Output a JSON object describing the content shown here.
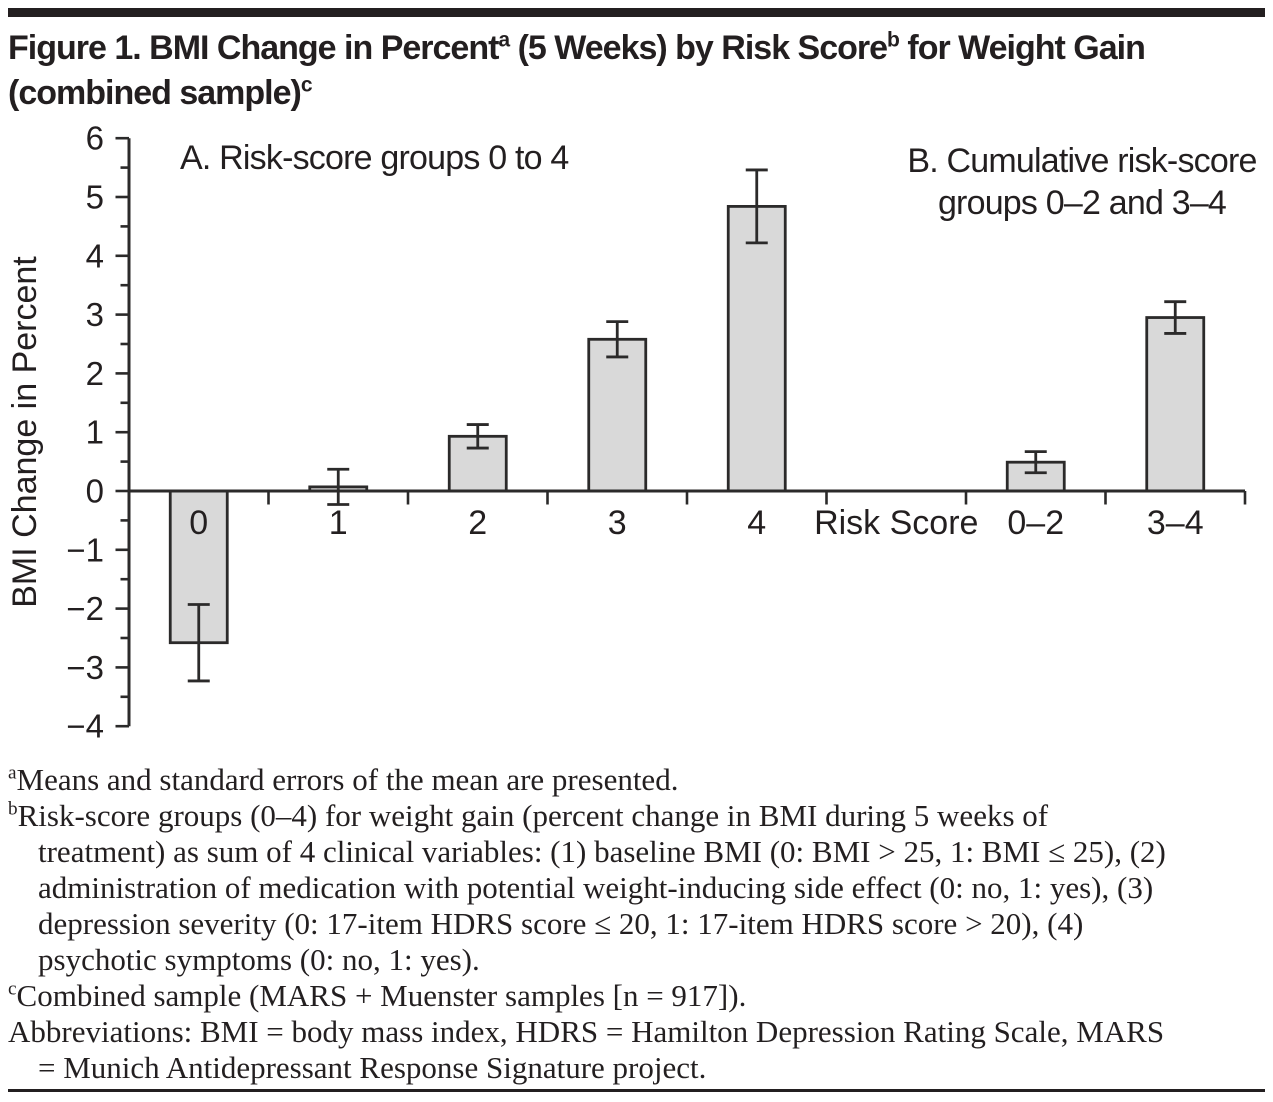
{
  "title": {
    "seg1": "Figure 1. BMI Change in Percent",
    "sup1": "a",
    "seg2": " (5 Weeks) by Risk Score",
    "sup2": "b",
    "seg3": " for Weight Gain",
    "seg4": "(combined sample)",
    "sup3": "c"
  },
  "chart_data": {
    "type": "bar",
    "title": "BMI Change in Percent (5 Weeks) by Risk Score for Weight Gain (combined sample)",
    "panel_a_label": "A. Risk-score groups 0 to 4",
    "panel_b_label_line1": "B. Cumulative risk-score",
    "panel_b_label_line2": "groups 0–2 and 3–4",
    "ylabel": "BMI Change in Percent",
    "xlabel": "Risk Score",
    "ylim": [
      -4,
      6
    ],
    "y_major_step": 1,
    "y_minor_step": 0.5,
    "y_tick_labels": [
      "6",
      "5",
      "4",
      "3",
      "2",
      "1",
      "0",
      "−1",
      "−2",
      "−3",
      "−4"
    ],
    "grid": "off",
    "legend": "none",
    "error_bars": "mean ± standard error",
    "categories": [
      "0",
      "1",
      "2",
      "3",
      "4",
      "Risk Score",
      "0–2",
      "3–4"
    ],
    "slots": [
      {
        "label": "0",
        "mean": -2.58,
        "se": 0.65
      },
      {
        "label": "1",
        "mean": 0.07,
        "se": 0.3
      },
      {
        "label": "2",
        "mean": 0.93,
        "se": 0.2
      },
      {
        "label": "3",
        "mean": 2.58,
        "se": 0.3
      },
      {
        "label": "4",
        "mean": 4.84,
        "se": 0.62
      },
      {
        "label": "Risk Score",
        "mean": null,
        "se": null
      },
      {
        "label": "0–2",
        "mean": 0.49,
        "se": 0.18
      },
      {
        "label": "3–4",
        "mean": 2.95,
        "se": 0.27
      }
    ],
    "colors": {
      "bar_fill": "#d9d9d9",
      "bar_stroke": "#2b2a2a",
      "axis_color": "#2b2a2a",
      "text_color": "#231f20",
      "rule_color": "#231f20"
    }
  },
  "footnotes": {
    "a_sup": "a",
    "a_text": "Means and standard errors of the mean are presented.",
    "b_sup": "b",
    "b_text": "Risk-score groups (0–4) for weight gain (percent change in BMI during 5 weeks of treatment) as sum of 4 clinical variables: (1) baseline BMI (0: BMI > 25, 1: BMI ≤ 25), (2) administration of medication with potential weight-inducing side effect (0: no, 1: yes), (3) depression severity (0: 17-item HDRS score ≤ 20, 1: 17-item HDRS score > 20), (4) psychotic symptoms (0: no, 1: yes).",
    "c_sup": "c",
    "c_text": "Combined sample (MARS + Muenster samples [n = 917]).",
    "abbreviations": "Abbreviations: BMI = body mass index, HDRS = Hamilton Depression Rating Scale, MARS = Munich Antidepressant Response Signature project."
  }
}
